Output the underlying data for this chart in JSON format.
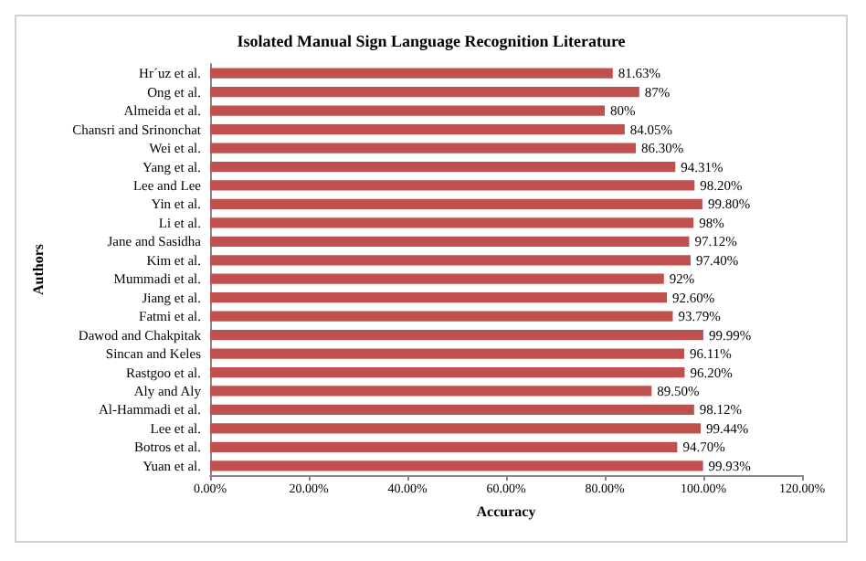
{
  "chart_data": {
    "type": "bar",
    "orientation": "horizontal",
    "title": "Isolated Manual Sign Language Recognition Literature",
    "xlabel": "Accuracy",
    "ylabel": "Authors",
    "categories": [
      "Hr´uz et al.",
      "Ong et al.",
      "Almeida et al.",
      "Chansri and Srinonchat",
      "Wei et al.",
      "Yang et al.",
      "Lee and Lee",
      "Yin et al.",
      "Li et al.",
      "Jane and Sasidha",
      "Kim et al.",
      "Mummadi et al.",
      "Jiang et al.",
      "Fatmi et al.",
      "Dawod and Chakpitak",
      "Sincan and Keles",
      "Rastgoo et al.",
      "Aly and Aly",
      "Al-Hammadi et al.",
      "Lee et al.",
      "Botros et al.",
      "Yuan et al."
    ],
    "values": [
      81.63,
      87,
      80,
      84.05,
      86.3,
      94.31,
      98.2,
      99.8,
      98,
      97.12,
      97.4,
      92,
      92.6,
      93.79,
      99.99,
      96.11,
      96.2,
      89.5,
      98.12,
      99.44,
      94.7,
      99.93
    ],
    "value_labels": [
      "81.63%",
      "87%",
      "80%",
      "84.05%",
      "86.30%",
      "94.31%",
      "98.20%",
      "99.80%",
      "98%",
      "97.12%",
      "97.40%",
      "92%",
      "92.60%",
      "93.79%",
      "99.99%",
      "96.11%",
      "96.20%",
      "89.50%",
      "98.12%",
      "99.44%",
      "94.70%",
      "99.93%"
    ],
    "color": "#c0504d",
    "xlim": [
      0,
      120
    ],
    "xticks": [
      {
        "value": 0,
        "label": "0.00%"
      },
      {
        "value": 20,
        "label": "20.00%"
      },
      {
        "value": 40,
        "label": "40.00%"
      },
      {
        "value": 60,
        "label": "60.00%"
      },
      {
        "value": 80,
        "label": "80.00%"
      },
      {
        "value": 100,
        "label": "100.00%"
      },
      {
        "value": 120,
        "label": "120.00%"
      }
    ],
    "grid": false
  }
}
